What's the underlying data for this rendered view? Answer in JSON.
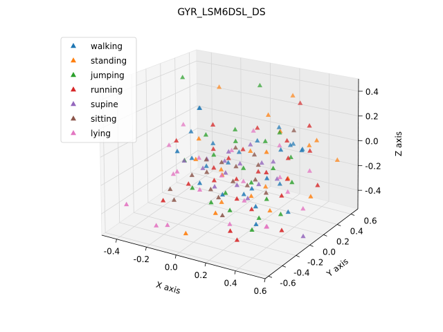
{
  "chart_data": {
    "type": "scatter",
    "title": "GYR_LSM6DSL_DS",
    "xlabel": "X axis",
    "ylabel": "Y axis",
    "zlabel": "Z axis",
    "xlim": [
      -0.5,
      0.6
    ],
    "ylim": [
      -0.65,
      0.7
    ],
    "zlim": [
      -0.55,
      0.5
    ],
    "xticks": [
      "-0.4",
      "-0.2",
      "0.0",
      "0.2",
      "0.4",
      "0.6"
    ],
    "xtick_values": [
      -0.4,
      -0.2,
      0.0,
      0.2,
      0.4,
      0.6
    ],
    "yticks": [
      "-0.6",
      "-0.4",
      "-0.2",
      "0.0",
      "0.2",
      "0.4",
      "0.6"
    ],
    "ytick_values": [
      -0.6,
      -0.4,
      -0.2,
      0.0,
      0.2,
      0.4,
      0.6
    ],
    "zticks": [
      "-0.4",
      "-0.2",
      "0.0",
      "0.2",
      "0.4"
    ],
    "ztick_values": [
      -0.4,
      -0.2,
      0.0,
      0.2,
      0.4
    ],
    "grid": true,
    "marker": "triangle",
    "legend_position": "upper-left",
    "series": [
      {
        "name": "walking",
        "color": "#1f77b4",
        "points": [
          [
            -0.36,
            0.45,
            0.1
          ],
          [
            -0.34,
            0.4,
            0.12
          ],
          [
            -0.3,
            0.2,
            0.0
          ],
          [
            -0.25,
            -0.1,
            -0.05
          ],
          [
            -0.2,
            0.0,
            -0.12
          ],
          [
            -0.15,
            0.1,
            -0.2
          ],
          [
            0.25,
            0.5,
            -0.05
          ],
          [
            0.3,
            0.35,
            0.0
          ],
          [
            0.35,
            0.1,
            0.05
          ],
          [
            0.35,
            -0.1,
            -0.1
          ],
          [
            0.4,
            0.3,
            0.0
          ],
          [
            0.45,
            0.2,
            0.05
          ],
          [
            0.3,
            0.2,
            -0.25
          ],
          [
            -0.05,
            0.2,
            -0.18
          ],
          [
            0.0,
            0.25,
            -0.1
          ],
          [
            0.1,
            0.3,
            0.0
          ],
          [
            0.25,
            -0.1,
            -0.2
          ],
          [
            -0.1,
            -0.1,
            -0.25
          ],
          [
            0.15,
            0.0,
            -0.3
          ],
          [
            0.3,
            -0.15,
            -0.3
          ],
          [
            0.2,
            0.4,
            0.1
          ],
          [
            -0.2,
            0.3,
            -0.1
          ],
          [
            0.1,
            -0.2,
            -0.25
          ],
          [
            0.35,
            -0.25,
            -0.38
          ],
          [
            0.45,
            0.0,
            -0.35
          ]
        ]
      },
      {
        "name": "standing",
        "color": "#ff7f0e",
        "points": [
          [
            -0.3,
            0.6,
            0.25
          ],
          [
            0.2,
            0.6,
            0.3
          ],
          [
            0.5,
            0.3,
            0.1
          ],
          [
            0.55,
            0.5,
            -0.1
          ],
          [
            0.6,
            0.0,
            -0.2
          ],
          [
            0.1,
            -0.3,
            -0.35
          ],
          [
            -0.1,
            -0.3,
            -0.55
          ],
          [
            0.0,
            0.0,
            -0.4
          ],
          [
            0.3,
            0.0,
            0.05
          ],
          [
            0.4,
            0.1,
            -0.15
          ],
          [
            0.1,
            0.2,
            -0.05
          ],
          [
            -0.05,
            0.1,
            -0.2
          ],
          [
            0.2,
            0.0,
            -0.3
          ],
          [
            0.3,
            0.2,
            0.15
          ],
          [
            -0.15,
            -0.05,
            -0.1
          ],
          [
            0.05,
            -0.1,
            -0.15
          ],
          [
            0.25,
            0.1,
            -0.25
          ],
          [
            0.45,
            0.3,
            0.05
          ],
          [
            0.15,
            0.35,
            0.2
          ],
          [
            -0.2,
            0.1,
            0.0
          ],
          [
            0.35,
            -0.05,
            -0.35
          ]
        ]
      },
      {
        "name": "jumping",
        "color": "#2ca02c",
        "points": [
          [
            -0.45,
            0.4,
            0.35
          ],
          [
            0.0,
            0.55,
            0.35
          ],
          [
            0.3,
            0.1,
            -0.1
          ],
          [
            0.35,
            -0.1,
            -0.25
          ],
          [
            0.4,
            0.0,
            -0.38
          ],
          [
            -0.2,
            0.2,
            0.0
          ],
          [
            -0.1,
            0.1,
            -0.1
          ],
          [
            0.0,
            0.2,
            0.0
          ],
          [
            0.2,
            0.0,
            -0.2
          ],
          [
            0.3,
            -0.1,
            -0.4
          ],
          [
            -0.15,
            -0.1,
            -0.3
          ],
          [
            0.15,
            -0.2,
            -0.35
          ],
          [
            0.25,
            0.3,
            0.1
          ],
          [
            0.1,
            0.1,
            -0.15
          ],
          [
            0.05,
            -0.05,
            -0.3
          ],
          [
            -0.05,
            0.3,
            0.05
          ],
          [
            0.35,
            0.25,
            -0.05
          ],
          [
            0.2,
            0.2,
            0.05
          ],
          [
            0.45,
            0.05,
            -0.15
          ],
          [
            0.3,
            -0.2,
            -0.45
          ],
          [
            -0.25,
            0.0,
            -0.15
          ],
          [
            0.0,
            -0.15,
            -0.35
          ]
        ]
      },
      {
        "name": "running",
        "color": "#d62728",
        "points": [
          [
            0.25,
            0.6,
            0.25
          ],
          [
            0.45,
            0.3,
            0.2
          ],
          [
            0.5,
            0.2,
            0.05
          ],
          [
            0.6,
            0.1,
            -0.15
          ],
          [
            0.5,
            -0.2,
            -0.4
          ],
          [
            0.2,
            -0.2,
            -0.55
          ],
          [
            -0.3,
            -0.2,
            -0.4
          ],
          [
            -0.4,
            0.2,
            -0.1
          ],
          [
            -0.2,
            0.3,
            0.05
          ],
          [
            -0.1,
            0.1,
            -0.2
          ],
          [
            0.0,
            0.1,
            -0.1
          ],
          [
            0.1,
            0.0,
            -0.2
          ],
          [
            0.2,
            0.1,
            -0.15
          ],
          [
            0.3,
            0.0,
            -0.1
          ],
          [
            0.35,
            0.2,
            -0.2
          ],
          [
            0.15,
            -0.1,
            -0.3
          ],
          [
            -0.05,
            0.0,
            -0.25
          ],
          [
            0.4,
            0.1,
            0.0
          ],
          [
            0.25,
            -0.1,
            -0.35
          ],
          [
            0.05,
            0.2,
            -0.05
          ],
          [
            -0.15,
            0.2,
            -0.1
          ],
          [
            0.1,
            0.3,
            0.1
          ],
          [
            0.3,
            0.3,
            0.05
          ],
          [
            0.45,
            -0.1,
            -0.2
          ],
          [
            0.2,
            -0.3,
            -0.45
          ],
          [
            -0.2,
            -0.05,
            -0.3
          ]
        ]
      },
      {
        "name": "supine",
        "color": "#9467bd",
        "points": [
          [
            0.6,
            -0.1,
            -0.45
          ],
          [
            -0.3,
            0.1,
            -0.2
          ],
          [
            -0.1,
            0.0,
            -0.1
          ],
          [
            0.0,
            0.1,
            -0.05
          ],
          [
            0.05,
            -0.05,
            -0.15
          ],
          [
            0.1,
            0.05,
            -0.1
          ],
          [
            0.2,
            0.15,
            -0.1
          ],
          [
            0.25,
            0.0,
            -0.2
          ],
          [
            0.15,
            -0.1,
            -0.2
          ],
          [
            -0.05,
            0.15,
            -0.15
          ],
          [
            0.3,
            0.1,
            -0.05
          ],
          [
            0.0,
            -0.1,
            -0.25
          ],
          [
            0.1,
            0.2,
            0.0
          ],
          [
            -0.15,
            0.05,
            -0.2
          ],
          [
            0.2,
            -0.05,
            -0.3
          ],
          [
            0.35,
            0.05,
            -0.15
          ]
        ]
      },
      {
        "name": "sitting",
        "color": "#8c564b",
        "points": [
          [
            0.3,
            0.4,
            0.1
          ],
          [
            -0.3,
            -0.1,
            -0.35
          ],
          [
            -0.25,
            -0.15,
            -0.4
          ],
          [
            -0.1,
            0.0,
            -0.2
          ],
          [
            0.0,
            0.0,
            -0.1
          ],
          [
            0.05,
            0.1,
            -0.15
          ],
          [
            0.1,
            -0.05,
            -0.2
          ],
          [
            0.15,
            0.05,
            -0.25
          ],
          [
            0.2,
            0.1,
            -0.1
          ],
          [
            0.25,
            -0.05,
            -0.15
          ],
          [
            -0.05,
            -0.05,
            -0.3
          ],
          [
            0.05,
            -0.15,
            -0.3
          ],
          [
            0.0,
            0.2,
            -0.05
          ],
          [
            0.15,
            0.15,
            -0.05
          ],
          [
            -0.15,
            0.1,
            -0.15
          ],
          [
            0.3,
            0.0,
            -0.25
          ],
          [
            0.1,
            -0.2,
            -0.4
          ],
          [
            -0.2,
            0.0,
            -0.25
          ]
        ]
      },
      {
        "name": "lying",
        "color": "#e377c2",
        "points": [
          [
            -0.5,
            -0.3,
            -0.45
          ],
          [
            -0.45,
            0.2,
            -0.15
          ],
          [
            -0.4,
            0.3,
            0.0
          ],
          [
            -0.3,
            -0.3,
            -0.55
          ],
          [
            -0.2,
            -0.35,
            -0.5
          ],
          [
            0.5,
            0.2,
            -0.1
          ],
          [
            0.55,
            0.0,
            -0.3
          ],
          [
            0.4,
            -0.2,
            -0.4
          ],
          [
            -0.3,
            0.0,
            -0.25
          ],
          [
            -0.2,
            0.1,
            -0.15
          ],
          [
            -0.1,
            -0.1,
            -0.3
          ],
          [
            0.0,
            0.0,
            -0.2
          ],
          [
            0.1,
            0.1,
            -0.25
          ],
          [
            0.2,
            -0.1,
            -0.3
          ],
          [
            0.3,
            0.2,
            -0.2
          ],
          [
            0.4,
            0.1,
            -0.25
          ],
          [
            -0.05,
            0.25,
            -0.1
          ],
          [
            0.15,
            -0.2,
            -0.45
          ],
          [
            0.25,
            0.3,
            0.0
          ],
          [
            -0.35,
            0.05,
            -0.3
          ],
          [
            0.35,
            -0.1,
            -0.45
          ],
          [
            0.05,
            0.35,
            0.05
          ]
        ]
      }
    ]
  }
}
